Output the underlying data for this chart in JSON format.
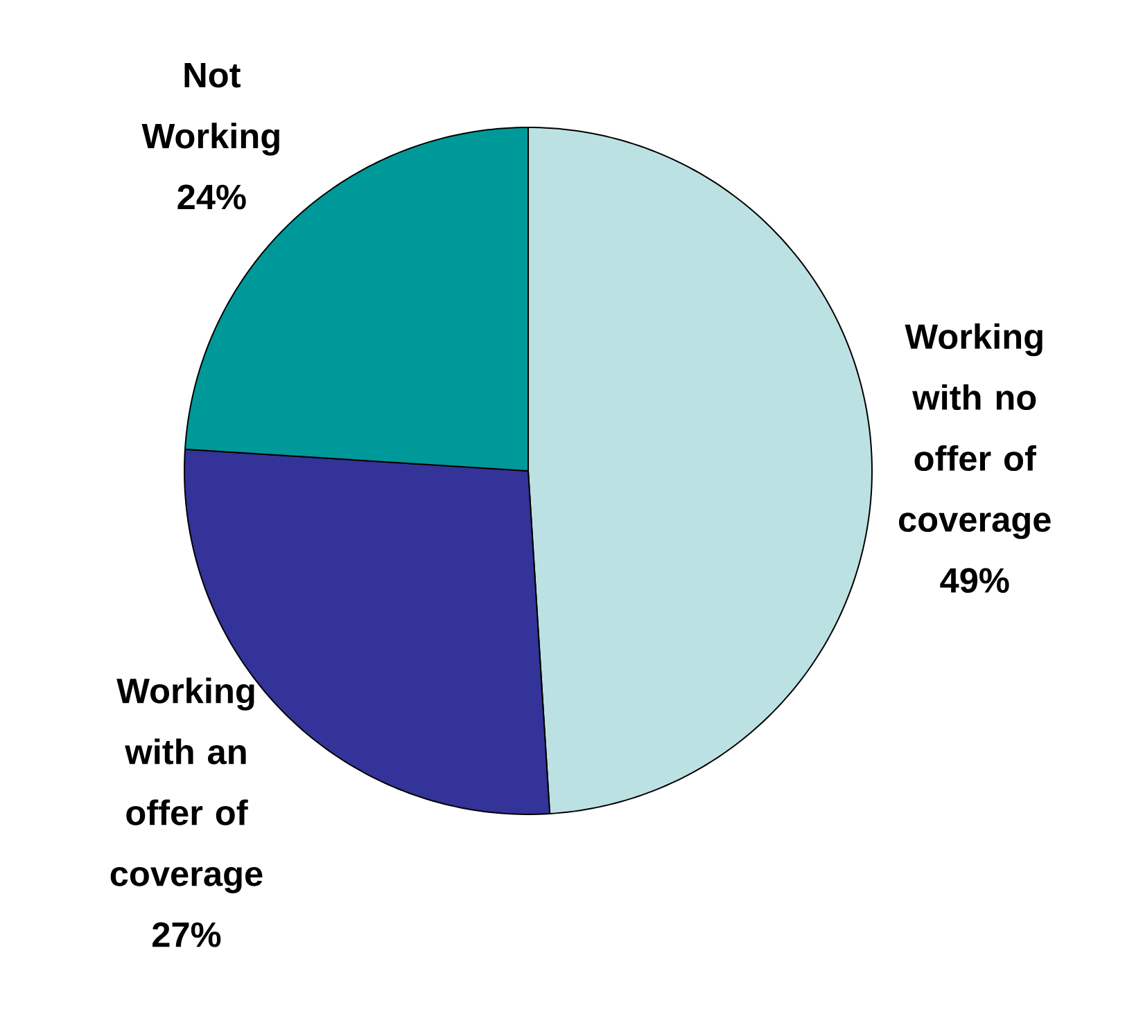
{
  "chart_data": {
    "type": "pie",
    "categories": [
      "Working with no offer of coverage",
      "Working with an offer of coverage",
      "Not Working"
    ],
    "values": [
      49,
      27,
      24
    ],
    "value_labels": [
      "49%",
      "27%",
      "24%"
    ],
    "colors": [
      "#bce1e3",
      "#333399",
      "#009999"
    ]
  }
}
